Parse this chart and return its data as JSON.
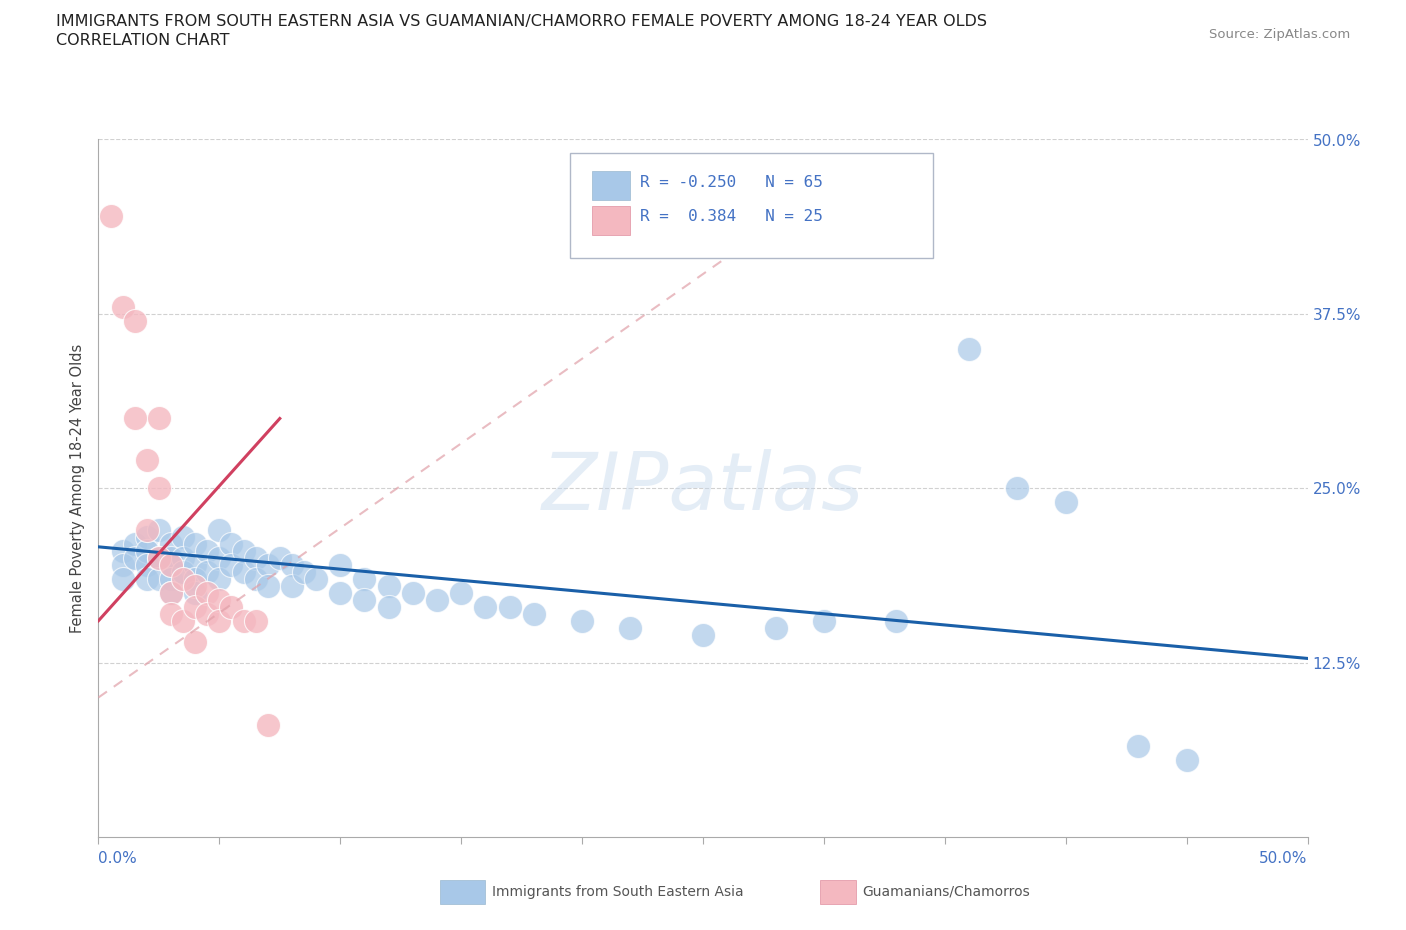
{
  "title_line1": "IMMIGRANTS FROM SOUTH EASTERN ASIA VS GUAMANIAN/CHAMORRO FEMALE POVERTY AMONG 18-24 YEAR OLDS",
  "title_line2": "CORRELATION CHART",
  "source_text": "Source: ZipAtlas.com",
  "ylabel": "Female Poverty Among 18-24 Year Olds",
  "xlim": [
    0.0,
    0.5
  ],
  "ylim": [
    0.0,
    0.5
  ],
  "grid_color": "#cccccc",
  "watermark": "ZIPatlas",
  "blue_color": "#a8c8e8",
  "pink_color": "#f4b8c0",
  "line_blue": "#1a5fa8",
  "line_pink": "#d04060",
  "line_pink_dash_color": "#e0a0a8",
  "blue_scatter": [
    [
      0.01,
      0.205
    ],
    [
      0.01,
      0.195
    ],
    [
      0.01,
      0.185
    ],
    [
      0.015,
      0.21
    ],
    [
      0.015,
      0.2
    ],
    [
      0.02,
      0.215
    ],
    [
      0.02,
      0.205
    ],
    [
      0.02,
      0.195
    ],
    [
      0.02,
      0.185
    ],
    [
      0.025,
      0.22
    ],
    [
      0.025,
      0.2
    ],
    [
      0.025,
      0.185
    ],
    [
      0.03,
      0.21
    ],
    [
      0.03,
      0.2
    ],
    [
      0.03,
      0.195
    ],
    [
      0.03,
      0.185
    ],
    [
      0.03,
      0.175
    ],
    [
      0.035,
      0.215
    ],
    [
      0.035,
      0.2
    ],
    [
      0.035,
      0.19
    ],
    [
      0.04,
      0.21
    ],
    [
      0.04,
      0.195
    ],
    [
      0.04,
      0.185
    ],
    [
      0.04,
      0.175
    ],
    [
      0.045,
      0.205
    ],
    [
      0.045,
      0.19
    ],
    [
      0.05,
      0.22
    ],
    [
      0.05,
      0.2
    ],
    [
      0.05,
      0.185
    ],
    [
      0.055,
      0.21
    ],
    [
      0.055,
      0.195
    ],
    [
      0.06,
      0.205
    ],
    [
      0.06,
      0.19
    ],
    [
      0.065,
      0.2
    ],
    [
      0.065,
      0.185
    ],
    [
      0.07,
      0.195
    ],
    [
      0.07,
      0.18
    ],
    [
      0.075,
      0.2
    ],
    [
      0.08,
      0.195
    ],
    [
      0.08,
      0.18
    ],
    [
      0.085,
      0.19
    ],
    [
      0.09,
      0.185
    ],
    [
      0.1,
      0.195
    ],
    [
      0.1,
      0.175
    ],
    [
      0.11,
      0.185
    ],
    [
      0.11,
      0.17
    ],
    [
      0.12,
      0.18
    ],
    [
      0.12,
      0.165
    ],
    [
      0.13,
      0.175
    ],
    [
      0.14,
      0.17
    ],
    [
      0.15,
      0.175
    ],
    [
      0.16,
      0.165
    ],
    [
      0.17,
      0.165
    ],
    [
      0.18,
      0.16
    ],
    [
      0.2,
      0.155
    ],
    [
      0.22,
      0.15
    ],
    [
      0.25,
      0.145
    ],
    [
      0.28,
      0.15
    ],
    [
      0.3,
      0.155
    ],
    [
      0.33,
      0.155
    ],
    [
      0.36,
      0.35
    ],
    [
      0.38,
      0.25
    ],
    [
      0.4,
      0.24
    ],
    [
      0.43,
      0.065
    ],
    [
      0.45,
      0.055
    ]
  ],
  "pink_scatter": [
    [
      0.005,
      0.445
    ],
    [
      0.01,
      0.38
    ],
    [
      0.015,
      0.37
    ],
    [
      0.015,
      0.3
    ],
    [
      0.02,
      0.27
    ],
    [
      0.02,
      0.22
    ],
    [
      0.025,
      0.3
    ],
    [
      0.025,
      0.25
    ],
    [
      0.025,
      0.2
    ],
    [
      0.03,
      0.195
    ],
    [
      0.03,
      0.175
    ],
    [
      0.03,
      0.16
    ],
    [
      0.035,
      0.185
    ],
    [
      0.035,
      0.155
    ],
    [
      0.04,
      0.18
    ],
    [
      0.04,
      0.165
    ],
    [
      0.04,
      0.14
    ],
    [
      0.045,
      0.175
    ],
    [
      0.045,
      0.16
    ],
    [
      0.05,
      0.17
    ],
    [
      0.05,
      0.155
    ],
    [
      0.055,
      0.165
    ],
    [
      0.06,
      0.155
    ],
    [
      0.065,
      0.155
    ],
    [
      0.07,
      0.08
    ]
  ],
  "blue_trendline": [
    [
      0.0,
      0.208
    ],
    [
      0.5,
      0.128
    ]
  ],
  "pink_trendline_solid": [
    [
      0.0,
      0.155
    ],
    [
      0.075,
      0.3
    ]
  ],
  "pink_trendline_dash": [
    [
      0.0,
      0.1
    ],
    [
      0.28,
      0.44
    ]
  ]
}
